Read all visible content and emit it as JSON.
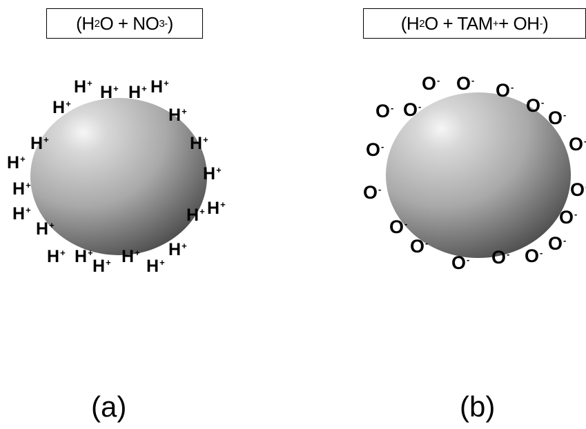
{
  "panel_a": {
    "formula_box": {
      "open": "(H",
      "sub1": "2",
      "mid": "O + NO",
      "sub2": "3",
      "sup": "-",
      "close": ")"
    },
    "ion_text": "H",
    "ion_charge": "+",
    "caption": "(a)"
  },
  "panel_b": {
    "formula_box": {
      "open": "(H",
      "sub1": "2",
      "mid": "O + TAM",
      "sup1": "+",
      "mid2": " + OH ",
      "sup2": "-",
      "close": ")"
    },
    "ion_text": "O",
    "ion_charge": "-",
    "caption": "(b)"
  },
  "colors": {
    "sphere_light": "#f4f4f4",
    "sphere_dark": "#4a4a4a",
    "outline": "#000000"
  }
}
